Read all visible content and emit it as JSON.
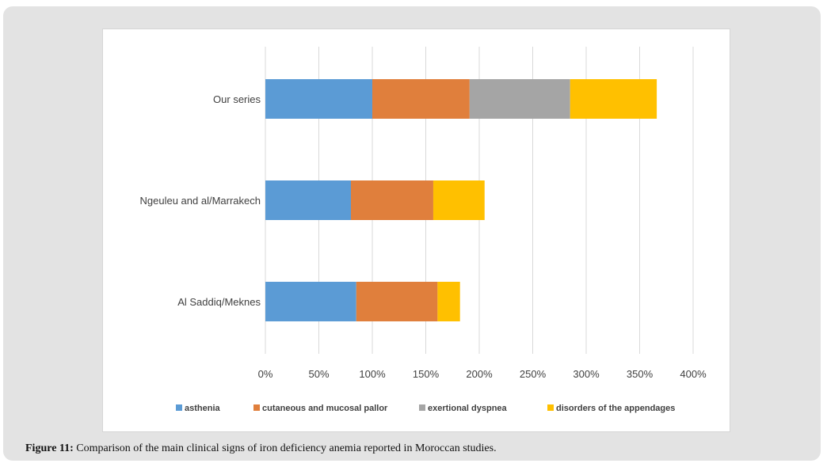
{
  "chart_data": {
    "type": "bar",
    "orientation": "horizontal",
    "stacked": true,
    "categories": [
      "Our series",
      "Ngeuleu and al/Marrakech",
      "Al Saddiq/Meknes"
    ],
    "series": [
      {
        "name": "asthenia",
        "color": "#5b9bd5",
        "values": [
          100,
          80,
          85
        ]
      },
      {
        "name": "cutaneous and mucosal pallor",
        "color": "#e07f3c",
        "values": [
          91,
          77,
          76
        ]
      },
      {
        "name": "exertional dyspnea",
        "color": "#a5a5a5",
        "values": [
          94,
          0,
          0
        ]
      },
      {
        "name": "disorders of the appendages",
        "color": "#ffc000",
        "values": [
          81,
          48,
          21
        ]
      }
    ],
    "xlim": [
      0,
      400
    ],
    "xticks": [
      "0%",
      "50%",
      "100%",
      "150%",
      "200%",
      "250%",
      "300%",
      "350%",
      "400%"
    ],
    "grid": true,
    "legend": "bottom"
  },
  "caption": {
    "label": "Figure 11:",
    "text": " Comparison of the main clinical signs of iron deficiency anemia reported in Moroccan studies."
  }
}
